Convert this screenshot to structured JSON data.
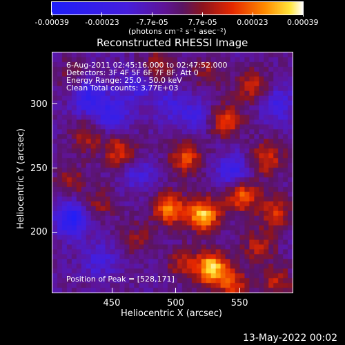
{
  "colorbar": {
    "tick_labels": [
      "-0.00039",
      "-0.00023",
      "-7.7e-05",
      "7.7e-05",
      "0.00023",
      "0.00039"
    ],
    "unit_label": "(photons cm⁻² s⁻¹ asec⁻²)",
    "range": [
      -0.00039,
      0.00039
    ]
  },
  "chart_data": {
    "type": "heatmap",
    "title": "Reconstructed RHESSI Image",
    "xlabel": "Heliocentric X (arcsec)",
    "ylabel": "Heliocentric Y (arcsec)",
    "xlim": [
      403,
      592
    ],
    "ylim": [
      152,
      341
    ],
    "x_ticks": [
      450,
      500,
      550
    ],
    "y_ticks": [
      200,
      250,
      300
    ],
    "x_tick_labels": [
      "450",
      "500",
      "550"
    ],
    "y_tick_labels": [
      "200",
      "250",
      "300"
    ],
    "annotation_lines": [
      "6-Aug-2011 02:45:16.000 to 02:47:52.000",
      "Detectors: 3F 4F 5F 6F 7F 8F, Att 0",
      "Energy Range: 25.0 - 50.0 keV",
      "Clean     Total counts: 3.77E+03"
    ],
    "peak_label": "Position of Peak = [528,171]",
    "peak_position": [
      528,
      171
    ],
    "hotspots": [
      {
        "x": 522,
        "y": 213,
        "v": 0.00036
      },
      {
        "x": 528,
        "y": 171,
        "v": 0.00039
      },
      {
        "x": 495,
        "y": 218,
        "v": 0.0003
      },
      {
        "x": 508,
        "y": 258,
        "v": 0.00022
      },
      {
        "x": 552,
        "y": 228,
        "v": 0.00026
      },
      {
        "x": 572,
        "y": 258,
        "v": 0.00021
      },
      {
        "x": 578,
        "y": 215,
        "v": 0.0002
      },
      {
        "x": 565,
        "y": 188,
        "v": 0.00016
      },
      {
        "x": 540,
        "y": 287,
        "v": 0.00022
      },
      {
        "x": 560,
        "y": 315,
        "v": 0.00018
      },
      {
        "x": 525,
        "y": 325,
        "v": 0.00012
      },
      {
        "x": 485,
        "y": 330,
        "v": 0.00014
      },
      {
        "x": 456,
        "y": 263,
        "v": 0.0002
      },
      {
        "x": 430,
        "y": 275,
        "v": 0.00014
      },
      {
        "x": 418,
        "y": 240,
        "v": 0.00012
      },
      {
        "x": 440,
        "y": 222,
        "v": 0.00012
      },
      {
        "x": 470,
        "y": 195,
        "v": 0.00011
      },
      {
        "x": 580,
        "y": 160,
        "v": 0.00016
      },
      {
        "x": 545,
        "y": 158,
        "v": 0.0002
      },
      {
        "x": 505,
        "y": 175,
        "v": 0.00015
      },
      {
        "x": 418,
        "y": 325,
        "v": 8e-05
      }
    ],
    "coldspots": [
      {
        "x": 418,
        "y": 210,
        "v": -0.0003
      },
      {
        "x": 450,
        "y": 292,
        "v": -0.0002
      },
      {
        "x": 432,
        "y": 305,
        "v": -0.00022
      },
      {
        "x": 470,
        "y": 315,
        "v": -0.00015
      },
      {
        "x": 545,
        "y": 248,
        "v": -0.0002
      },
      {
        "x": 515,
        "y": 292,
        "v": -0.00015
      },
      {
        "x": 580,
        "y": 300,
        "v": -0.00016
      },
      {
        "x": 440,
        "y": 178,
        "v": -0.00014
      },
      {
        "x": 495,
        "y": 300,
        "v": -0.00012
      },
      {
        "x": 470,
        "y": 245,
        "v": -0.00012
      }
    ]
  },
  "footer": {
    "date": "13-May-2022 00:02"
  }
}
